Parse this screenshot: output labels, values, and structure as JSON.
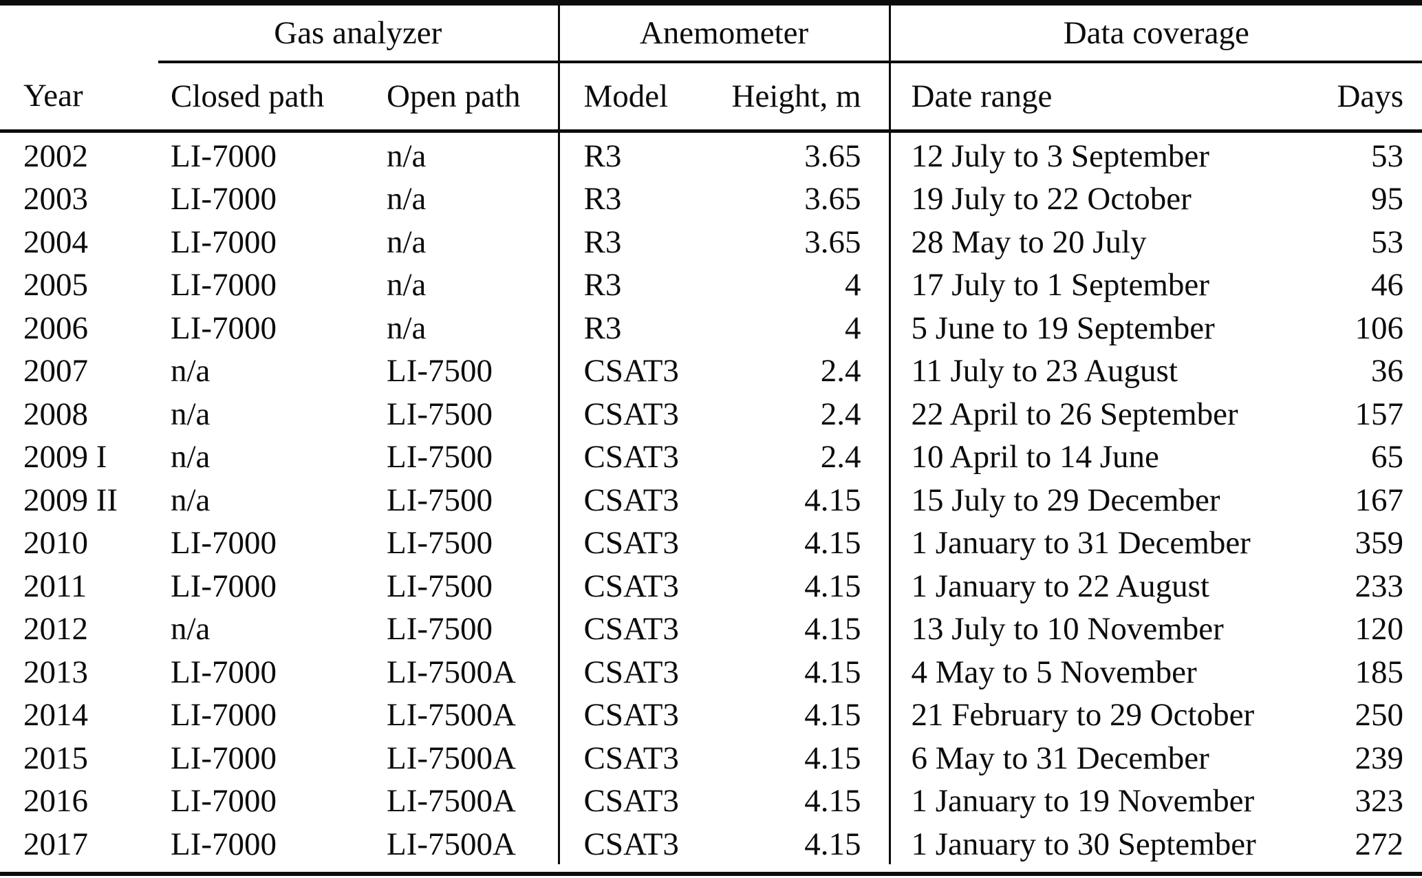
{
  "colors": {
    "ink": "#0c0c0c",
    "background": "#ffffff"
  },
  "table": {
    "group_headers": [
      {
        "label": "",
        "span": 1
      },
      {
        "label": "Gas analyzer",
        "span": 2
      },
      {
        "label": "Anemometer",
        "span": 2
      },
      {
        "label": "Data coverage",
        "span": 2
      }
    ],
    "columns": [
      "Year",
      "Closed path",
      "Open path",
      "Model",
      "Height, m",
      "Date range",
      "Days"
    ],
    "rows": [
      [
        "2002",
        "LI-7000",
        "n/a",
        "R3",
        "3.65",
        "12 July to 3 September",
        "53"
      ],
      [
        "2003",
        "LI-7000",
        "n/a",
        "R3",
        "3.65",
        "19 July to 22 October",
        "95"
      ],
      [
        "2004",
        "LI-7000",
        "n/a",
        "R3",
        "3.65",
        "28 May to 20 July",
        "53"
      ],
      [
        "2005",
        "LI-7000",
        "n/a",
        "R3",
        "4",
        "17 July to 1 September",
        "46"
      ],
      [
        "2006",
        "LI-7000",
        "n/a",
        "R3",
        "4",
        "5 June to 19 September",
        "106"
      ],
      [
        "2007",
        "n/a",
        "LI-7500",
        "CSAT3",
        "2.4",
        "11 July to 23 August",
        "36"
      ],
      [
        "2008",
        "n/a",
        "LI-7500",
        "CSAT3",
        "2.4",
        "22 April to 26 September",
        "157"
      ],
      [
        "2009 I",
        "n/a",
        "LI-7500",
        "CSAT3",
        "2.4",
        "10 April to 14 June",
        "65"
      ],
      [
        "2009 II",
        "n/a",
        "LI-7500",
        "CSAT3",
        "4.15",
        "15 July to 29 December",
        "167"
      ],
      [
        "2010",
        "LI-7000",
        "LI-7500",
        "CSAT3",
        "4.15",
        "1 January to 31 December",
        "359"
      ],
      [
        "2011",
        "LI-7000",
        "LI-7500",
        "CSAT3",
        "4.15",
        "1 January to 22 August",
        "233"
      ],
      [
        "2012",
        "n/a",
        "LI-7500",
        "CSAT3",
        "4.15",
        "13 July to 10 November",
        "120"
      ],
      [
        "2013",
        "LI-7000",
        "LI-7500A",
        "CSAT3",
        "4.15",
        "4 May to 5 November",
        "185"
      ],
      [
        "2014",
        "LI-7000",
        "LI-7500A",
        "CSAT3",
        "4.15",
        "21 February to 29 October",
        "250"
      ],
      [
        "2015",
        "LI-7000",
        "LI-7500A",
        "CSAT3",
        "4.15",
        "6 May to 31 December",
        "239"
      ],
      [
        "2016",
        "LI-7000",
        "LI-7500A",
        "CSAT3",
        "4.15",
        "1 January to 19 November",
        "323"
      ],
      [
        "2017",
        "LI-7000",
        "LI-7500A",
        "CSAT3",
        "4.15",
        "1 January to 30 September",
        "272"
      ]
    ]
  }
}
